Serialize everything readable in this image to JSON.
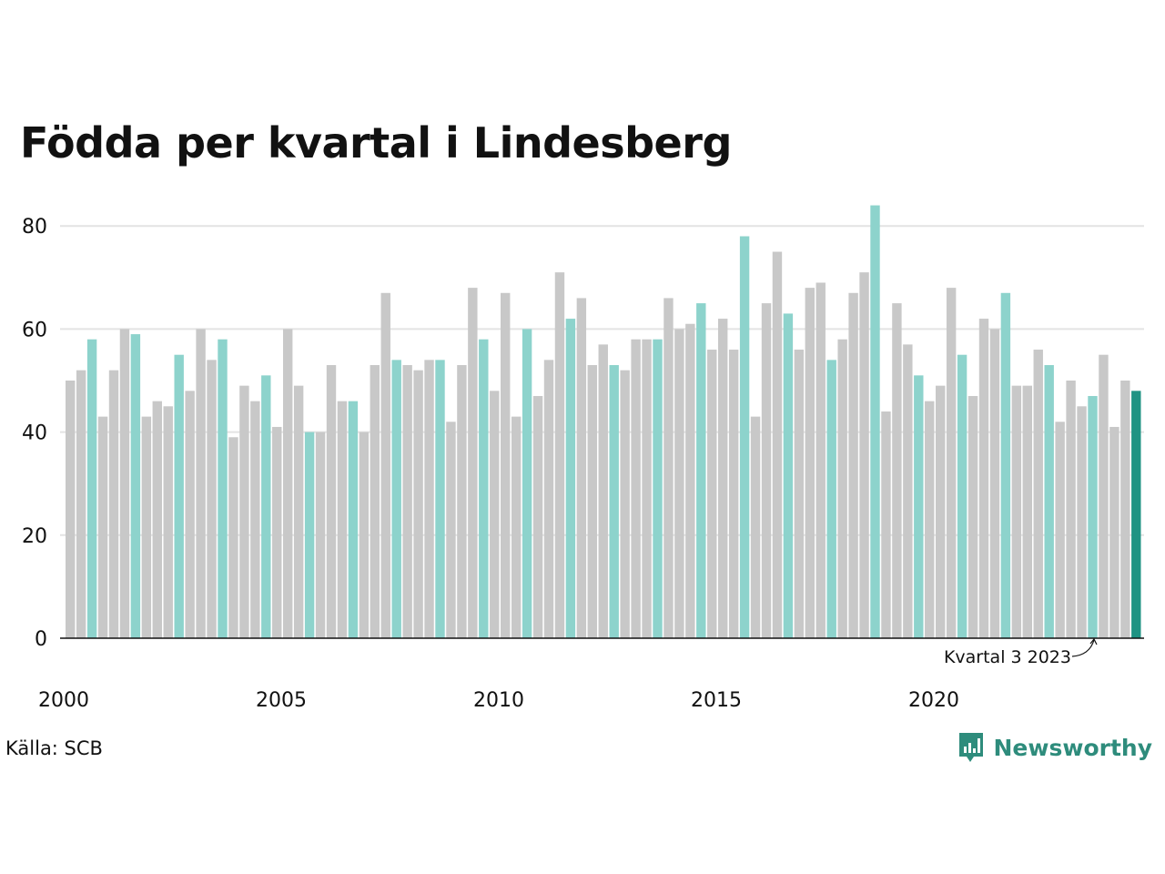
{
  "title": "Födda per kvartal i Lindesberg",
  "source": "Källa: SCB",
  "brand": "Newsworthy",
  "annotation": "Kvartal 3 2023",
  "colors": {
    "other": "#c8c8c8",
    "q3": "#8dd3cc",
    "latest": "#1f9383",
    "brand": "#2e8c7c",
    "grid": "#e3e3e3",
    "axis": "#111111"
  },
  "chart_data": {
    "type": "bar",
    "ylim": [
      0,
      84
    ],
    "yticks": [
      0,
      20,
      40,
      60,
      80
    ],
    "xtick_labels": [
      "2000",
      "2005",
      "2010",
      "2015",
      "2020"
    ],
    "xlabel": "",
    "ylabel": "",
    "grid": true,
    "start_year": 2000,
    "values": [
      50,
      52,
      58,
      43,
      52,
      60,
      59,
      43,
      46,
      45,
      55,
      48,
      60,
      54,
      58,
      39,
      49,
      46,
      51,
      41,
      60,
      49,
      40,
      40,
      53,
      46,
      46,
      40,
      53,
      67,
      54,
      53,
      52,
      54,
      54,
      42,
      53,
      68,
      58,
      48,
      67,
      43,
      60,
      47,
      54,
      71,
      62,
      66,
      53,
      57,
      53,
      52,
      58,
      58,
      58,
      66,
      60,
      61,
      65,
      56,
      62,
      56,
      78,
      43,
      65,
      75,
      63,
      56,
      68,
      69,
      54,
      58,
      67,
      71,
      84,
      44,
      65,
      57,
      51,
      46,
      49,
      68,
      55,
      47,
      62,
      60,
      67,
      49,
      49,
      56,
      53,
      42,
      50,
      45,
      47,
      55,
      41,
      50,
      48
    ]
  }
}
